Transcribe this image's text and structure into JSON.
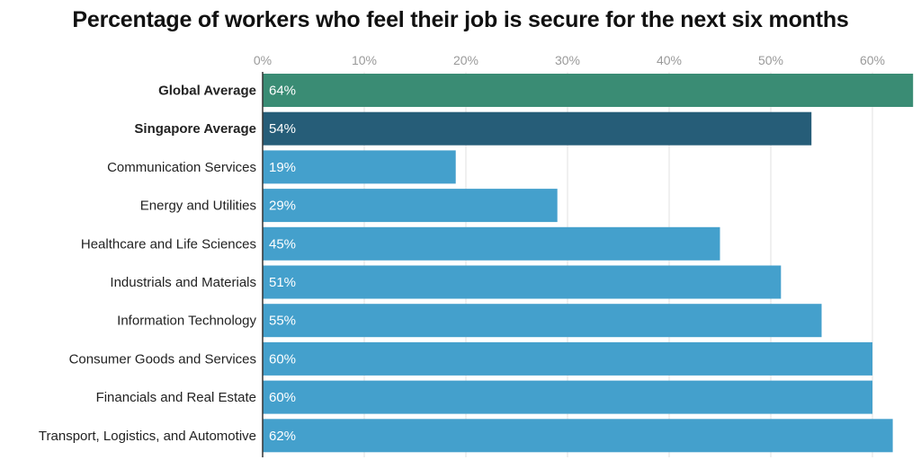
{
  "chart_data": {
    "type": "bar",
    "orientation": "horizontal",
    "title": "Percentage of workers who feel their job is secure for the next six months",
    "categories": [
      "Global Average",
      "Singapore Average",
      "Communication Services",
      "Energy and Utilities",
      "Healthcare and Life Sciences",
      "Industrials and Materials",
      "Information Technology",
      "Consumer Goods and Services",
      "Financials and Real Estate",
      "Transport, Logistics, and Automotive"
    ],
    "values": [
      64,
      54,
      19,
      29,
      45,
      51,
      55,
      60,
      60,
      62
    ],
    "data_labels": [
      "64%",
      "54%",
      "19%",
      "29%",
      "45%",
      "51%",
      "55%",
      "60%",
      "60%",
      "62%"
    ],
    "bold_categories": [
      "Global Average",
      "Singapore Average"
    ],
    "bar_colors": [
      "#3a8c74",
      "#265d78",
      "#44a0cc",
      "#44a0cc",
      "#44a0cc",
      "#44a0cc",
      "#44a0cc",
      "#44a0cc",
      "#44a0cc",
      "#44a0cc"
    ],
    "xticks": [
      0,
      10,
      20,
      30,
      40,
      50,
      60
    ],
    "xtick_labels": [
      "0%",
      "10%",
      "20%",
      "30%",
      "40%",
      "50%",
      "60%"
    ],
    "xlim": [
      0,
      64
    ],
    "xaxis_position": "top",
    "grid": true,
    "xlabel": "",
    "ylabel": ""
  }
}
